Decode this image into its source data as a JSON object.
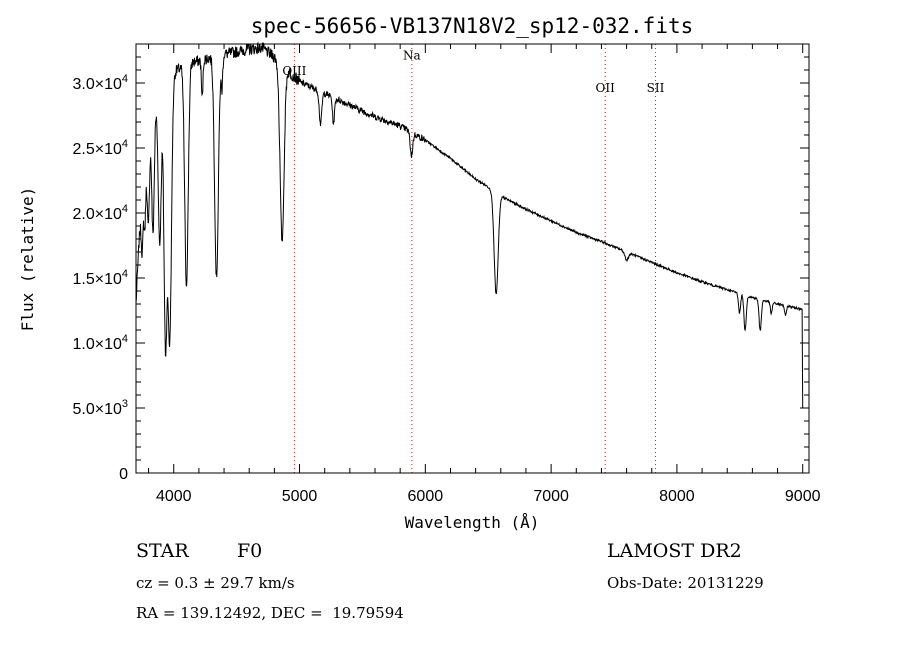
{
  "chart_data": {
    "type": "line",
    "title": "spec-56656-VB137N18V2_sp12-032.fits",
    "xlabel": "Wavelength (Å)",
    "ylabel": "Flux (relative)",
    "xlim": [
      3700,
      9050
    ],
    "ylim": [
      0,
      33000
    ],
    "x_ticks": [
      4000,
      5000,
      6000,
      7000,
      8000,
      9000
    ],
    "x_tick_labels": [
      "4000",
      "5000",
      "6000",
      "7000",
      "8000",
      "9000"
    ],
    "y_ticks": [
      0,
      5000,
      10000,
      15000,
      20000,
      25000,
      30000
    ],
    "y_tick_labels": [
      {
        "mant": "0",
        "exp": ""
      },
      {
        "mant": "5.0×10",
        "exp": "3"
      },
      {
        "mant": "1.0×10",
        "exp": "4"
      },
      {
        "mant": "1.5×10",
        "exp": "4"
      },
      {
        "mant": "2.0×10",
        "exp": "4"
      },
      {
        "mant": "2.5×10",
        "exp": "4"
      },
      {
        "mant": "3.0×10",
        "exp": "4"
      }
    ],
    "line_annotations": [
      {
        "label": "OIII",
        "wavelength": 4959,
        "label_y": 30600
      },
      {
        "label": "Na",
        "wavelength": 5893,
        "label_y": 31800
      },
      {
        "label": "OII",
        "wavelength": 7430,
        "label_y": 29300
      },
      {
        "label": "SII",
        "wavelength": 7830,
        "label_y": 29300
      }
    ],
    "continuum": [
      [
        3700,
        13000
      ],
      [
        3720,
        17000
      ],
      [
        3760,
        24000
      ],
      [
        3800,
        26000
      ],
      [
        3850,
        28000
      ],
      [
        3900,
        29500
      ],
      [
        3950,
        30000
      ],
      [
        4000,
        30800
      ],
      [
        4100,
        31500
      ],
      [
        4200,
        31700
      ],
      [
        4300,
        32000
      ],
      [
        4400,
        32200
      ],
      [
        4500,
        32400
      ],
      [
        4600,
        32600
      ],
      [
        4700,
        32700
      ],
      [
        4800,
        32000
      ],
      [
        4900,
        31000
      ],
      [
        5000,
        30100
      ],
      [
        5200,
        29200
      ],
      [
        5400,
        28300
      ],
      [
        5600,
        27400
      ],
      [
        5800,
        26700
      ],
      [
        6000,
        25600
      ],
      [
        6200,
        24200
      ],
      [
        6400,
        22600
      ],
      [
        6500,
        22000
      ],
      [
        6600,
        21300
      ],
      [
        6800,
        20300
      ],
      [
        7000,
        19400
      ],
      [
        7200,
        18500
      ],
      [
        7400,
        17800
      ],
      [
        7600,
        17000
      ],
      [
        7800,
        16200
      ],
      [
        8000,
        15400
      ],
      [
        8200,
        14700
      ],
      [
        8400,
        14100
      ],
      [
        8600,
        13500
      ],
      [
        8800,
        13000
      ],
      [
        9000,
        12600
      ]
    ],
    "absorption_lines": [
      {
        "center": 3750,
        "depth": 5000,
        "width": 8
      },
      {
        "center": 3770,
        "depth": 5500,
        "width": 8
      },
      {
        "center": 3798,
        "depth": 7000,
        "width": 9
      },
      {
        "center": 3835,
        "depth": 9000,
        "width": 10
      },
      {
        "center": 3889,
        "depth": 11500,
        "width": 12
      },
      {
        "center": 3934,
        "depth": 19500,
        "width": 12
      },
      {
        "center": 3968,
        "depth": 20000,
        "width": 14
      },
      {
        "center": 4101,
        "depth": 17000,
        "width": 14
      },
      {
        "center": 4226,
        "depth": 3000,
        "width": 6
      },
      {
        "center": 4340,
        "depth": 17000,
        "width": 15
      },
      {
        "center": 4383,
        "depth": 2500,
        "width": 6
      },
      {
        "center": 4861,
        "depth": 13500,
        "width": 16
      },
      {
        "center": 5167,
        "depth": 2500,
        "width": 10
      },
      {
        "center": 5270,
        "depth": 2000,
        "width": 8
      },
      {
        "center": 5890,
        "depth": 1800,
        "width": 10
      },
      {
        "center": 6563,
        "depth": 7800,
        "width": 16
      },
      {
        "center": 7600,
        "depth": 600,
        "width": 14
      },
      {
        "center": 8498,
        "depth": 1500,
        "width": 8
      },
      {
        "center": 8542,
        "depth": 2700,
        "width": 9
      },
      {
        "center": 8662,
        "depth": 2400,
        "width": 9
      },
      {
        "center": 8750,
        "depth": 900,
        "width": 7
      },
      {
        "center": 8863,
        "depth": 800,
        "width": 7
      }
    ],
    "end_drop": {
      "x": 9000,
      "y": 5000
    }
  },
  "footer": {
    "object_type": "STAR",
    "subclass": "F0",
    "survey": "LAMOST DR2",
    "redshift": "cz = 0.3 ± 29.7 km/s",
    "obs_date": "Obs-Date: 20131229",
    "coords": "RA = 139.12492, DEC =  19.79594"
  }
}
